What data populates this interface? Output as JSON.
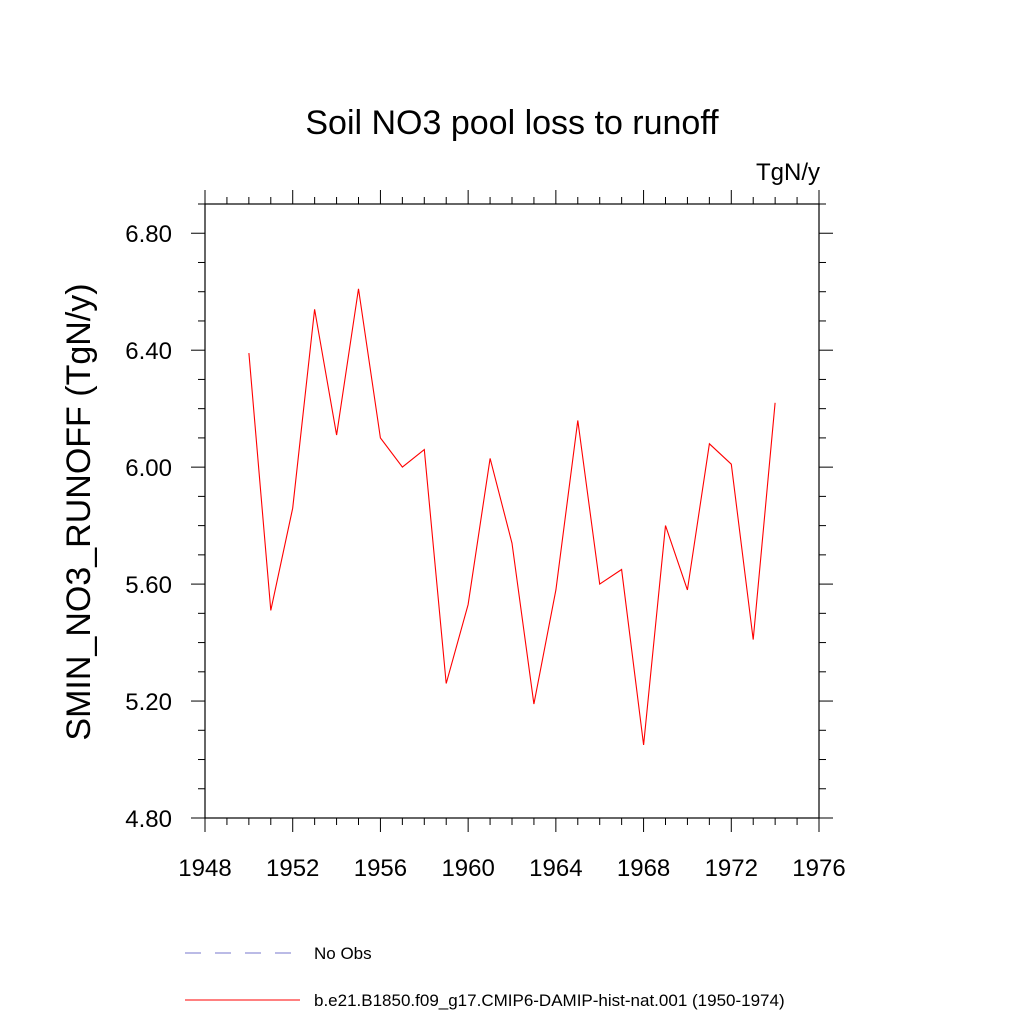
{
  "chart_data": {
    "type": "line",
    "title": "Soil NO3 pool loss to runoff",
    "units_label": "TgN/y",
    "ylabel": "SMIN_NO3_RUNOFF  (TgN/y)",
    "xlabel": "",
    "xlim": [
      1948,
      1976
    ],
    "ylim": [
      4.8,
      6.9
    ],
    "x_ticks": [
      1948,
      1952,
      1956,
      1960,
      1964,
      1968,
      1972,
      1976
    ],
    "x_tick_labels": [
      "1948",
      "1952",
      "1956",
      "1960",
      "1964",
      "1968",
      "1972",
      "1976"
    ],
    "y_ticks": [
      4.8,
      5.2,
      5.6,
      6.0,
      6.4,
      6.8
    ],
    "y_tick_labels": [
      "4.80",
      "5.20",
      "5.60",
      "6.00",
      "6.40",
      "6.80"
    ],
    "grid": false,
    "legend_position": "bottom",
    "series": [
      {
        "name": "b.e21.B1850.f09_g17.CMIP6-DAMIP-hist-nat.001 (1950-1974)",
        "color": "#ff0000",
        "style": "solid",
        "x": [
          1950,
          1951,
          1952,
          1953,
          1954,
          1955,
          1956,
          1957,
          1958,
          1959,
          1960,
          1961,
          1962,
          1963,
          1964,
          1965,
          1966,
          1967,
          1968,
          1969,
          1970,
          1971,
          1972,
          1973,
          1974
        ],
        "y": [
          6.39,
          5.51,
          5.86,
          6.54,
          6.11,
          6.61,
          6.1,
          6.0,
          6.06,
          5.26,
          5.53,
          6.03,
          5.74,
          5.19,
          5.58,
          6.16,
          5.6,
          5.65,
          5.05,
          5.8,
          5.58,
          6.08,
          6.01,
          5.41,
          6.22
        ]
      }
    ],
    "legend": [
      {
        "label": "No Obs",
        "color": "#7777cc",
        "style": "dashed"
      },
      {
        "label": "b.e21.B1850.f09_g17.CMIP6-DAMIP-hist-nat.001 (1950-1974)",
        "color": "#ff0000",
        "style": "solid"
      }
    ]
  }
}
